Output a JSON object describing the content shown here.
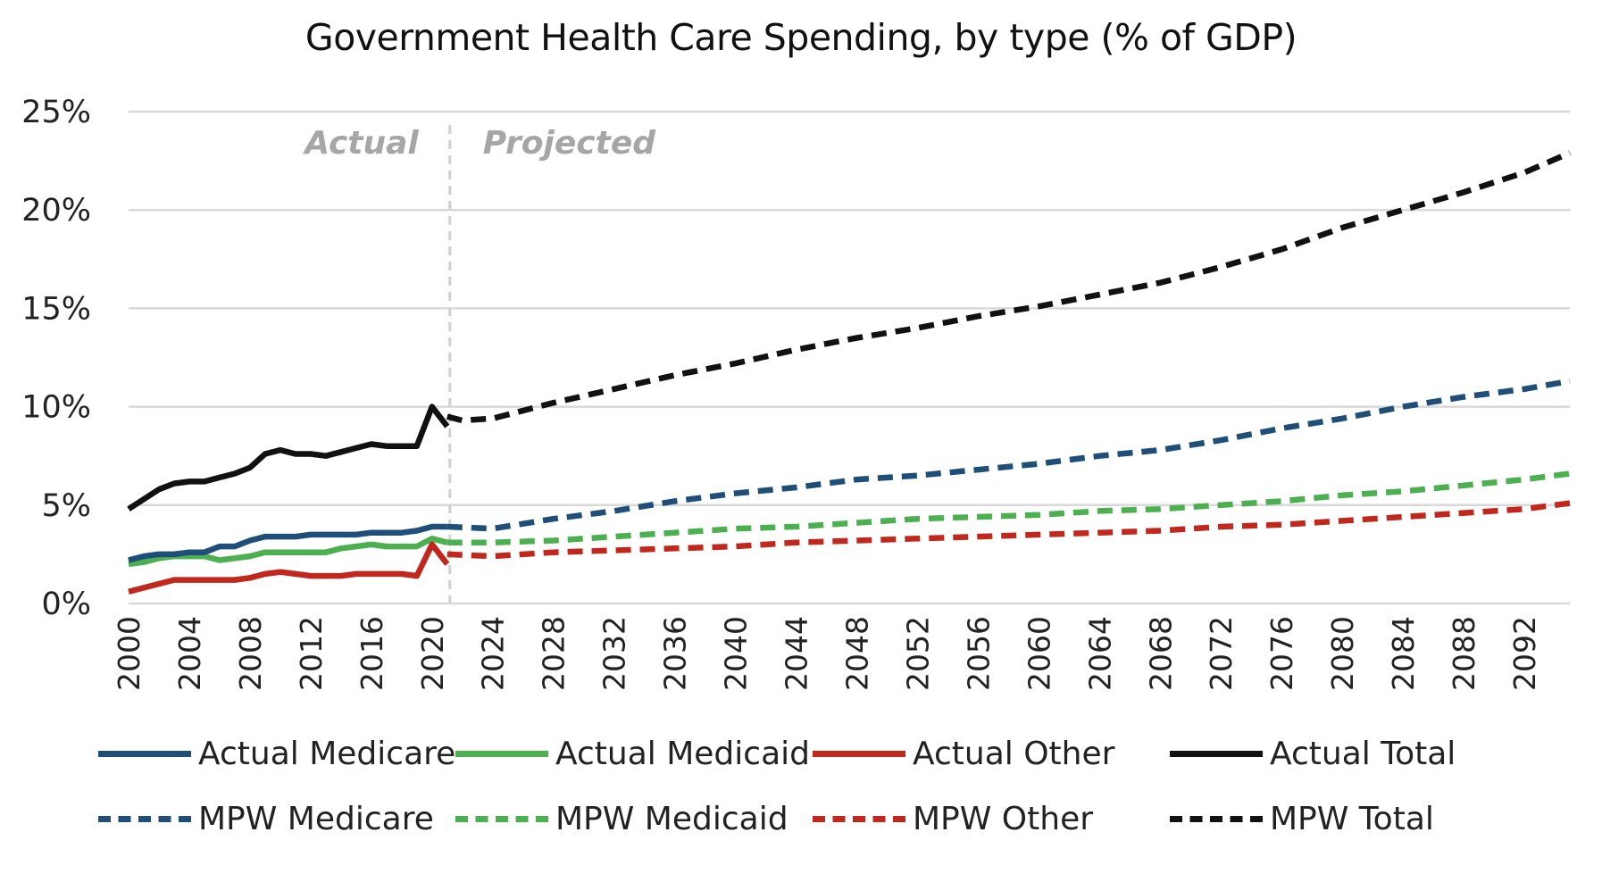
{
  "chart_data": {
    "type": "line",
    "title": "Government Health Care Spending, by type (% of GDP)",
    "xlabel": "",
    "ylabel": "",
    "ylim": [
      0,
      25
    ],
    "yticks": [
      "0%",
      "5%",
      "10%",
      "15%",
      "20%",
      "25%"
    ],
    "xlim": [
      2000,
      2095
    ],
    "xticks": [
      "2000",
      "2004",
      "2008",
      "2012",
      "2016",
      "2020",
      "2024",
      "2028",
      "2032",
      "2036",
      "2040",
      "2044",
      "2048",
      "2052",
      "2056",
      "2060",
      "2064",
      "2068",
      "2072",
      "2076",
      "2080",
      "2084",
      "2088",
      "2092"
    ],
    "grid": "horizontal",
    "divider_year": 2021,
    "annotations": {
      "left": "Actual",
      "right": "Projected"
    },
    "legend_position": "bottom",
    "series": [
      {
        "name": "Actual Medicare",
        "color": "#1F4E79",
        "style": "solid",
        "x": [
          2000,
          2001,
          2002,
          2003,
          2004,
          2005,
          2006,
          2007,
          2008,
          2009,
          2010,
          2011,
          2012,
          2013,
          2014,
          2015,
          2016,
          2017,
          2018,
          2019,
          2020,
          2021
        ],
        "values": [
          2.2,
          2.4,
          2.5,
          2.5,
          2.6,
          2.6,
          2.9,
          2.9,
          3.2,
          3.4,
          3.4,
          3.4,
          3.5,
          3.5,
          3.5,
          3.5,
          3.6,
          3.6,
          3.6,
          3.7,
          3.9,
          3.9
        ]
      },
      {
        "name": "Actual Medicaid",
        "color": "#4CAF50",
        "style": "solid",
        "x": [
          2000,
          2001,
          2002,
          2003,
          2004,
          2005,
          2006,
          2007,
          2008,
          2009,
          2010,
          2011,
          2012,
          2013,
          2014,
          2015,
          2016,
          2017,
          2018,
          2019,
          2020,
          2021
        ],
        "values": [
          2.0,
          2.1,
          2.3,
          2.4,
          2.4,
          2.4,
          2.2,
          2.3,
          2.4,
          2.6,
          2.6,
          2.6,
          2.6,
          2.6,
          2.8,
          2.9,
          3.0,
          2.9,
          2.9,
          2.9,
          3.3,
          3.1
        ]
      },
      {
        "name": "Actual Other",
        "color": "#C0281E",
        "style": "solid",
        "x": [
          2000,
          2001,
          2002,
          2003,
          2004,
          2005,
          2006,
          2007,
          2008,
          2009,
          2010,
          2011,
          2012,
          2013,
          2014,
          2015,
          2016,
          2017,
          2018,
          2019,
          2020,
          2021
        ],
        "values": [
          0.6,
          0.8,
          1.0,
          1.2,
          1.2,
          1.2,
          1.2,
          1.2,
          1.3,
          1.5,
          1.6,
          1.5,
          1.4,
          1.4,
          1.4,
          1.5,
          1.5,
          1.5,
          1.5,
          1.4,
          3.0,
          2.0
        ]
      },
      {
        "name": "Actual Total",
        "color": "#111111",
        "style": "solid",
        "x": [
          2000,
          2001,
          2002,
          2003,
          2004,
          2005,
          2006,
          2007,
          2008,
          2009,
          2010,
          2011,
          2012,
          2013,
          2014,
          2015,
          2016,
          2017,
          2018,
          2019,
          2020,
          2021
        ],
        "values": [
          4.8,
          5.3,
          5.8,
          6.1,
          6.2,
          6.2,
          6.4,
          6.6,
          6.9,
          7.6,
          7.8,
          7.6,
          7.6,
          7.5,
          7.7,
          7.9,
          8.1,
          8.0,
          8.0,
          8.0,
          10.0,
          9.0
        ]
      },
      {
        "name": "MPW Medicare",
        "color": "#1F4E79",
        "style": "dashed",
        "x": [
          2021,
          2024,
          2028,
          2032,
          2036,
          2040,
          2044,
          2048,
          2052,
          2056,
          2060,
          2064,
          2068,
          2072,
          2076,
          2080,
          2084,
          2088,
          2092,
          2095
        ],
        "values": [
          3.9,
          3.8,
          4.3,
          4.7,
          5.2,
          5.6,
          5.9,
          6.3,
          6.5,
          6.8,
          7.1,
          7.5,
          7.8,
          8.3,
          8.9,
          9.4,
          10.0,
          10.5,
          10.9,
          11.3
        ]
      },
      {
        "name": "MPW Medicaid",
        "color": "#4CAF50",
        "style": "dashed",
        "x": [
          2021,
          2024,
          2028,
          2032,
          2036,
          2040,
          2044,
          2048,
          2052,
          2056,
          2060,
          2064,
          2068,
          2072,
          2076,
          2080,
          2084,
          2088,
          2092,
          2095
        ],
        "values": [
          3.1,
          3.1,
          3.2,
          3.4,
          3.6,
          3.8,
          3.9,
          4.1,
          4.3,
          4.4,
          4.5,
          4.7,
          4.8,
          5.0,
          5.2,
          5.5,
          5.7,
          6.0,
          6.3,
          6.6
        ]
      },
      {
        "name": "MPW Other",
        "color": "#C0281E",
        "style": "dashed",
        "x": [
          2021,
          2024,
          2028,
          2032,
          2036,
          2040,
          2044,
          2048,
          2052,
          2056,
          2060,
          2064,
          2068,
          2072,
          2076,
          2080,
          2084,
          2088,
          2092,
          2095
        ],
        "values": [
          2.5,
          2.4,
          2.6,
          2.7,
          2.8,
          2.9,
          3.1,
          3.2,
          3.3,
          3.4,
          3.5,
          3.6,
          3.7,
          3.9,
          4.0,
          4.2,
          4.4,
          4.6,
          4.8,
          5.1
        ]
      },
      {
        "name": "MPW Total",
        "color": "#111111",
        "style": "dashed",
        "x": [
          2021,
          2022,
          2024,
          2028,
          2032,
          2036,
          2040,
          2044,
          2048,
          2052,
          2056,
          2060,
          2064,
          2068,
          2072,
          2076,
          2080,
          2084,
          2088,
          2092,
          2095
        ],
        "values": [
          9.5,
          9.3,
          9.4,
          10.2,
          10.9,
          11.6,
          12.2,
          12.9,
          13.5,
          14.0,
          14.6,
          15.1,
          15.7,
          16.3,
          17.1,
          18.0,
          19.1,
          20.0,
          20.9,
          21.9,
          22.9
        ]
      }
    ]
  }
}
